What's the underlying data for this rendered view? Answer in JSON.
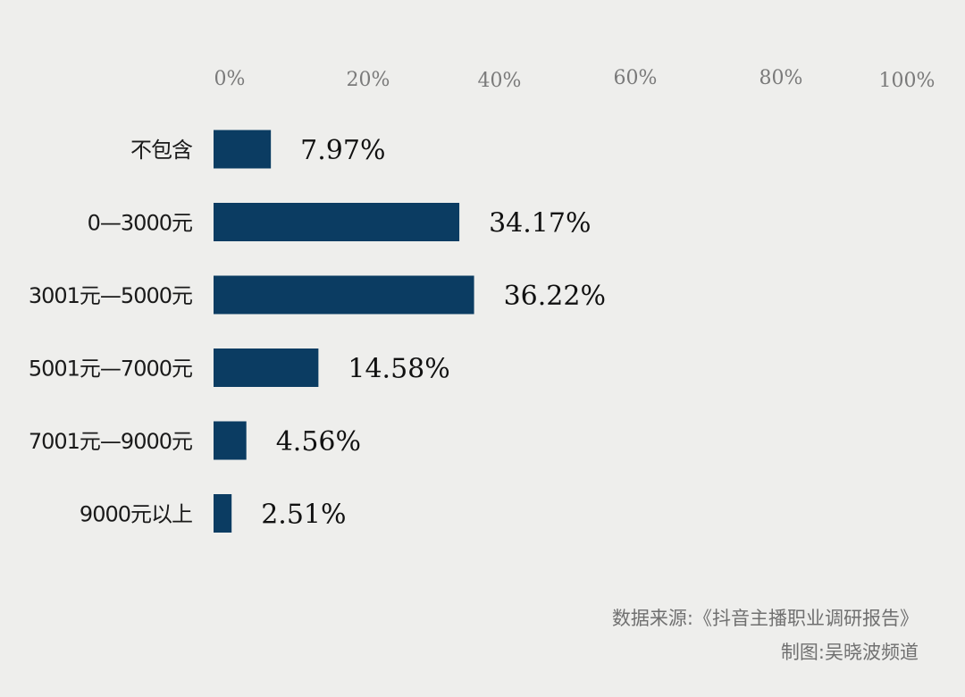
{
  "chart_data": {
    "type": "bar",
    "orientation": "horizontal",
    "categories": [
      "不包含",
      "0—3000元",
      "3001元—5000元",
      "5001元—7000元",
      "7001元—9000元",
      "9000元以上"
    ],
    "values": [
      7.97,
      34.17,
      36.22,
      14.58,
      4.56,
      2.51
    ],
    "value_labels": [
      "7.97%",
      "34.17%",
      "36.22%",
      "14.58%",
      "4.56%",
      "2.51%"
    ],
    "x_ticks": [
      "0%",
      "20%",
      "40%",
      "60%",
      "80%",
      "100%"
    ],
    "xlim": [
      0,
      100
    ],
    "grid": false,
    "bar_color": "#0b3c62"
  },
  "footer": {
    "source": "数据来源:《抖音主播职业调研报告》",
    "credit": "制图:吴晓波频道"
  }
}
